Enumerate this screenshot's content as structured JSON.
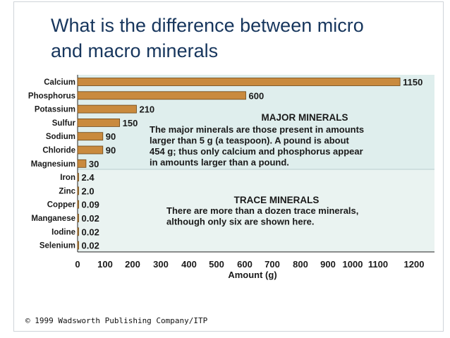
{
  "slide": {
    "title_line1": "What is the difference between micro",
    "title_line2": "and macro minerals"
  },
  "chart_data": {
    "type": "bar",
    "orientation": "horizontal",
    "categories": [
      "Calcium",
      "Phosphorus",
      "Potassium",
      "Sulfur",
      "Sodium",
      "Chloride",
      "Magnesium",
      "Iron",
      "Zinc",
      "Copper",
      "Manganese",
      "Iodine",
      "Selenium"
    ],
    "values": [
      1150,
      600,
      210,
      150,
      90,
      90,
      30,
      2.4,
      2.0,
      0.09,
      0.02,
      0.02,
      0.02
    ],
    "value_labels": [
      "1150",
      "600",
      "210",
      "150",
      "90",
      "90",
      "30",
      "2.4",
      "2.0",
      "0.09",
      "0.02",
      "0.02",
      "0.02"
    ],
    "xlabel": "Amount (g)",
    "xlim": [
      0,
      1200
    ],
    "xticks": [
      "0",
      "100",
      "200",
      "300",
      "400",
      "500",
      "600",
      "700",
      "800",
      "900",
      "1000",
      "1100",
      "1200"
    ],
    "bar_color": "#c98a3e",
    "panel_color": "#dfeeed",
    "groups": [
      {
        "heading": "MAJOR MINERALS",
        "text": [
          "The major minerals are those present in amounts",
          "larger than 5 g (a teaspoon). A pound is about",
          "454 g; thus only calcium and phosphorus appear",
          "in amounts larger than a pound."
        ]
      },
      {
        "heading": "TRACE MINERALS",
        "text": [
          "There are more than a dozen trace minerals,",
          "although only six are shown here."
        ]
      }
    ]
  },
  "footer": {
    "copyright": "© 1999 Wadsworth Publishing Company/ITP"
  }
}
